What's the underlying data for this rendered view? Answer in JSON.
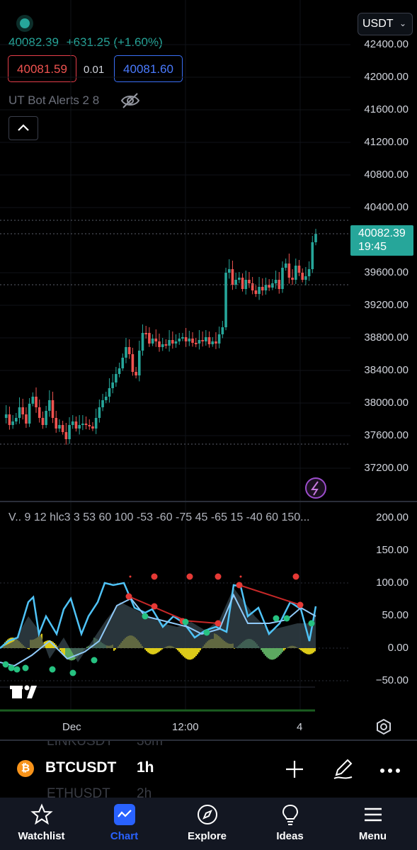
{
  "header": {
    "last_price": "40082.39",
    "change": "+631.25 (+1.60%)",
    "bid": "40081.59",
    "spread": "0.01",
    "ask": "40081.60",
    "indicator_name": "UT Bot Alerts 2 8",
    "currency": "USDT"
  },
  "price_axis": {
    "labels": [
      "42400.00",
      "42000.00",
      "41600.00",
      "41200.00",
      "40800.00",
      "40400.00",
      "39600.00",
      "39200.00",
      "38800.00",
      "38400.00",
      "38000.00",
      "37600.00",
      "37200.00"
    ],
    "current_price": "40082.39",
    "countdown": "19:45"
  },
  "indicator_pane": {
    "legend": "V.. 9 12 hlc3 3 53 60 100 -53 -60 -75 45 -65 15 -40 60 150...",
    "axis_labels": [
      "200.00",
      "150.00",
      "100.00",
      "50.00",
      "0.00",
      "−50.00"
    ]
  },
  "time_axis": {
    "labels": [
      "Dec",
      "12:00",
      "4"
    ]
  },
  "symbol_bar": {
    "symbol": "BTCUSDT",
    "interval": "1h",
    "ghost_prev_symbol": "LINKUSDT",
    "ghost_prev_interval": "30m",
    "ghost_next_symbol": "ETHUSDT",
    "ghost_next_interval": "2h"
  },
  "nav": {
    "items": [
      {
        "label": "Watchlist"
      },
      {
        "label": "Chart"
      },
      {
        "label": "Explore"
      },
      {
        "label": "Ideas"
      },
      {
        "label": "Menu"
      }
    ]
  },
  "colors": {
    "up": "#26a69a",
    "down": "#ef5350",
    "accent": "#2962ff",
    "wave_light": "#4fc3f7",
    "histogram_yellow": "#f5e11c"
  }
}
